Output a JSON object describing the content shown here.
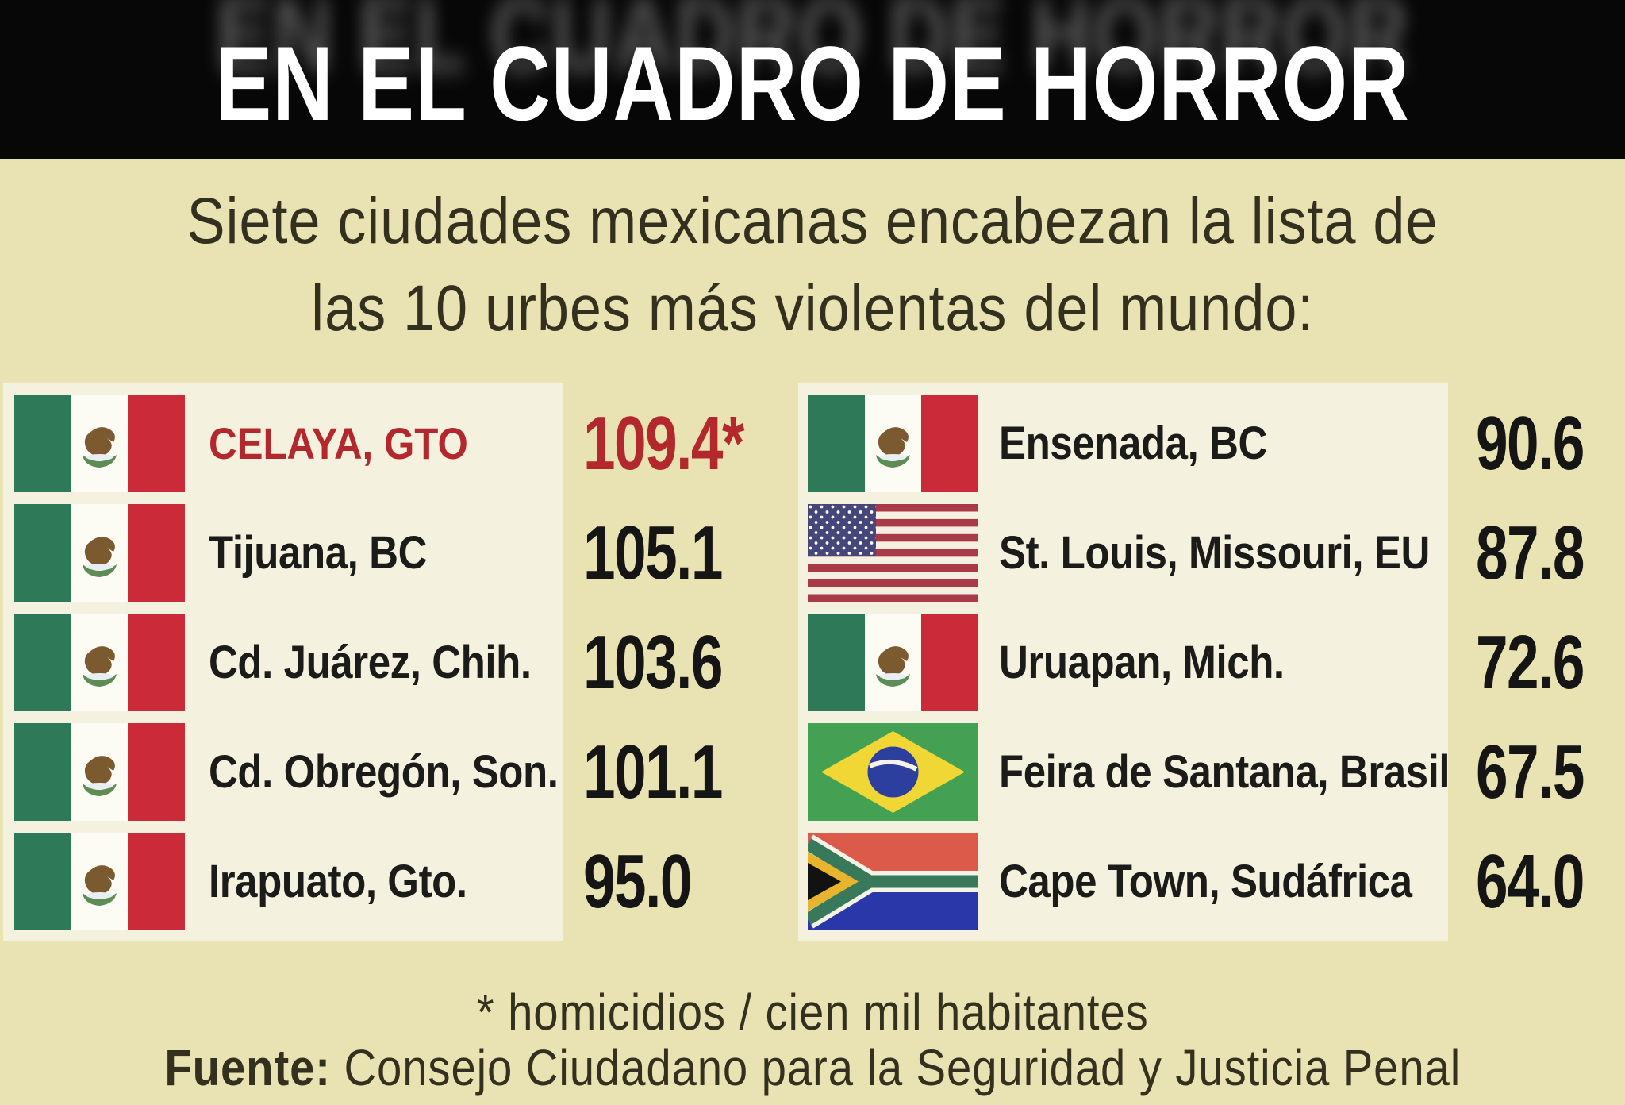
{
  "header": {
    "title": "EN EL CUADRO DE HORROR"
  },
  "subtitle": {
    "line1": "Siete ciudades mexicanas encabezan la lista de",
    "line2": "las 10 urbes más violentas del mundo:"
  },
  "left_column": {
    "rows": [
      {
        "flag": "mx",
        "city": "CELAYA, GTO",
        "value": "109.4*",
        "highlight": true
      },
      {
        "flag": "mx",
        "city": "Tijuana, BC",
        "value": "105.1",
        "highlight": false
      },
      {
        "flag": "mx",
        "city": "Cd. Juárez, Chih.",
        "value": "103.6",
        "highlight": false
      },
      {
        "flag": "mx",
        "city": "Cd. Obregón, Son.",
        "value": "101.1",
        "highlight": false
      },
      {
        "flag": "mx",
        "city": "Irapuato, Gto.",
        "value": "95.0",
        "highlight": false
      }
    ]
  },
  "right_column": {
    "rows": [
      {
        "flag": "mx",
        "city": "Ensenada, BC",
        "value": "90.6",
        "highlight": false
      },
      {
        "flag": "us",
        "city": "St. Louis, Missouri, EU",
        "value": "87.8",
        "highlight": false
      },
      {
        "flag": "mx",
        "city": "Uruapan, Mich.",
        "value": "72.6",
        "highlight": false
      },
      {
        "flag": "br",
        "city": "Feira de Santana, Brasil",
        "value": "67.5",
        "highlight": false
      },
      {
        "flag": "za",
        "city": "Cape Town, Sudáfrica",
        "value": "64.0",
        "highlight": false
      }
    ]
  },
  "footer": {
    "note": "* homicidios / cien mil habitantes",
    "source_label": "Fuente:",
    "source_text": "Consejo Ciudadano para la Seguridad y Justicia Penal"
  },
  "colors": {
    "page_bg": "#e9e2b2",
    "panel_bg": "#f4f1df",
    "header_bg": "#070707",
    "header_text": "#ffffff",
    "body_text": "#34301f",
    "city_text": "#1b1b19",
    "value_text": "#151515",
    "accent_red": "#b2282c",
    "mx_green": "#2e7a58",
    "mx_red": "#cb2a38",
    "us_blue": "#45477b",
    "us_red": "#a93b49",
    "br_green": "#44a052",
    "br_yellow": "#f0d735",
    "br_blue": "#2c3f9e",
    "za_red": "#dc5a4a",
    "za_blue": "#2a37a8",
    "za_green": "#37795a",
    "za_gold": "#e9b42d"
  },
  "chart_data": {
    "type": "table",
    "title": "EN EL CUADRO DE HORROR",
    "subtitle": "Siete ciudades mexicanas encabezan la lista de las 10 urbes más violentas del mundo:",
    "value_unit": "homicidios / cien mil habitantes",
    "source": "Consejo Ciudadano para la Seguridad y Justicia Penal",
    "categories": [
      "Celaya, Gto",
      "Tijuana, BC",
      "Cd. Juárez, Chih.",
      "Cd. Obregón, Son.",
      "Irapuato, Gto.",
      "Ensenada, BC",
      "St. Louis, Missouri, EU",
      "Uruapan, Mich.",
      "Feira de Santana, Brasil",
      "Cape Town, Sudáfrica"
    ],
    "values": [
      109.4,
      105.1,
      103.6,
      101.1,
      95.0,
      90.6,
      87.8,
      72.6,
      67.5,
      64.0
    ],
    "countries": [
      "México",
      "México",
      "México",
      "México",
      "México",
      "México",
      "Estados Unidos",
      "México",
      "Brasil",
      "Sudáfrica"
    ],
    "highlighted_category": "Celaya, Gto"
  }
}
